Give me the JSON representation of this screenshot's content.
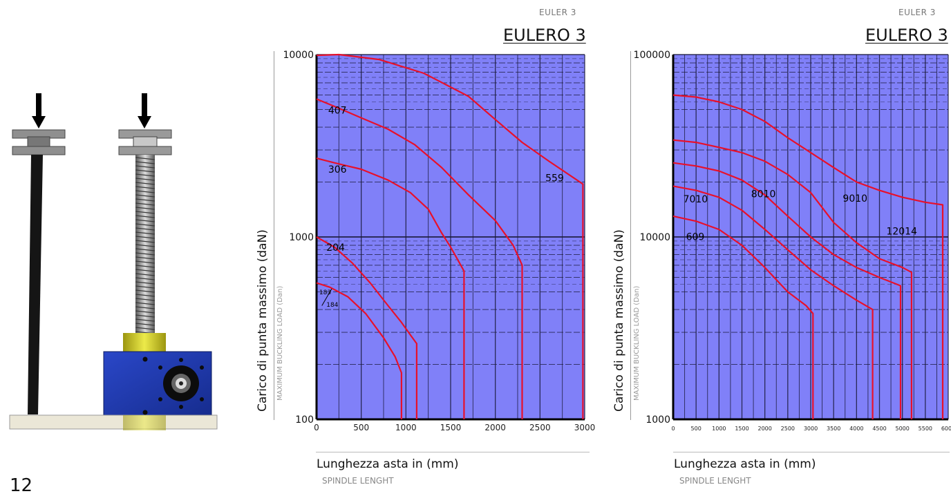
{
  "page_number": "12",
  "chart_data": [
    {
      "type": "line",
      "header_small": "EULER 3",
      "title": "EULERO 3",
      "ylabel": "Carico di punta massimo (daN)",
      "ylabel_sub": "MAXIMUM BUCKLING LOAD (Dan)",
      "xlabel": "Lunghezza asta in (mm)",
      "xlabel_sub": "SPINDLE LENGHT",
      "y_scale": "log",
      "ylim": [
        100,
        10000
      ],
      "xlim": [
        0,
        3000
      ],
      "x_ticks": [
        "0",
        "500",
        "1000",
        "1500",
        "2000",
        "2500",
        "3000"
      ],
      "y_ticks": [
        "100",
        "1000",
        "10000"
      ],
      "grid": true,
      "background_color": "#8080f8",
      "line_color": "#e8102a",
      "series": [
        {
          "name": "559",
          "x": [
            0,
            250,
            700,
            1200,
            1700,
            2000,
            2300,
            2600,
            2980,
            2980
          ],
          "y": [
            9900,
            10000,
            9400,
            7900,
            5900,
            4400,
            3300,
            2600,
            1950,
            100
          ]
        },
        {
          "name": "407",
          "x": [
            0,
            200,
            500,
            800,
            1100,
            1400,
            1700,
            2000,
            2200,
            2300,
            2300
          ],
          "y": [
            5700,
            5200,
            4500,
            3900,
            3200,
            2400,
            1700,
            1230,
            900,
            700,
            100
          ]
        },
        {
          "name": "306",
          "x": [
            0,
            200,
            500,
            800,
            1050,
            1250,
            1400,
            1500,
            1600,
            1650,
            1650
          ],
          "y": [
            2700,
            2550,
            2350,
            2050,
            1750,
            1420,
            1050,
            880,
            720,
            650,
            100
          ]
        },
        {
          "name": "204",
          "x": [
            0,
            200,
            400,
            600,
            800,
            950,
            1050,
            1120,
            1120
          ],
          "y": [
            1000,
            880,
            720,
            560,
            420,
            340,
            290,
            260,
            100
          ]
        },
        {
          "name": "183/184",
          "x": [
            0,
            150,
            350,
            550,
            750,
            880,
            950,
            950
          ],
          "y": [
            560,
            530,
            470,
            380,
            280,
            220,
            180,
            100
          ]
        }
      ],
      "line_labels": [
        {
          "text": "559",
          "x": 2560,
          "y": 2020
        },
        {
          "text": "407",
          "x": 130,
          "y": 4750
        },
        {
          "text": "306",
          "x": 130,
          "y": 2250
        },
        {
          "text": "204",
          "x": 110,
          "y": 840
        },
        {
          "text": "183",
          "x": 30,
          "y": 485
        },
        {
          "text": "184",
          "x": 110,
          "y": 415
        }
      ]
    },
    {
      "type": "line",
      "header_small": "EULER 3",
      "title": "EULERO 3",
      "ylabel": "Carico di punta massimo (daN)",
      "ylabel_sub": "MAXIMUM BUCKLING LOAD (Dan)",
      "xlabel": "Lunghezza asta in (mm)",
      "xlabel_sub": "SPINDLE LENGHT",
      "y_scale": "log",
      "ylim": [
        1000,
        100000
      ],
      "xlim": [
        0,
        6000
      ],
      "x_ticks": [
        "0",
        "500",
        "1000",
        "1500",
        "2000",
        "2500",
        "3000",
        "3500",
        "4000",
        "4500",
        "5000",
        "5500",
        "6000"
      ],
      "y_ticks": [
        "1000",
        "10000",
        "100000"
      ],
      "grid": true,
      "background_color": "#8080f8",
      "line_color": "#e8102a",
      "series": [
        {
          "name": "12014",
          "x": [
            0,
            500,
            1000,
            1500,
            2000,
            2500,
            3000,
            3500,
            4000,
            4500,
            5000,
            5500,
            5880,
            5880
          ],
          "y": [
            60000,
            58500,
            55000,
            50000,
            43000,
            35000,
            29000,
            24000,
            20000,
            18000,
            16500,
            15500,
            15000,
            1000
          ]
        },
        {
          "name": "9010",
          "x": [
            0,
            500,
            1000,
            1500,
            2000,
            2500,
            3000,
            3500,
            4000,
            4500,
            5000,
            5200,
            5200
          ],
          "y": [
            34000,
            33000,
            31000,
            29000,
            26000,
            22000,
            17500,
            12000,
            9300,
            7600,
            6800,
            6400,
            1000
          ]
        },
        {
          "name": "8010",
          "x": [
            0,
            500,
            1000,
            1500,
            2000,
            2500,
            3000,
            3500,
            4000,
            4500,
            4960,
            4960
          ],
          "y": [
            25500,
            24500,
            23000,
            20500,
            17000,
            13000,
            10000,
            8000,
            6800,
            6000,
            5400,
            1000
          ]
        },
        {
          "name": "7010",
          "x": [
            0,
            500,
            1000,
            1500,
            2000,
            2500,
            3000,
            3500,
            4000,
            4350,
            4350
          ],
          "y": [
            19000,
            18000,
            16500,
            14000,
            11000,
            8500,
            6600,
            5400,
            4500,
            4000,
            1000
          ]
        },
        {
          "name": "609",
          "x": [
            0,
            500,
            1000,
            1500,
            2000,
            2500,
            2900,
            3050,
            3050
          ],
          "y": [
            13000,
            12200,
            11000,
            9000,
            6800,
            5000,
            4200,
            3800,
            1000
          ]
        }
      ],
      "line_labels": [
        {
          "text": "7010",
          "x": 220,
          "y": 15500
        },
        {
          "text": "8010",
          "x": 1700,
          "y": 16500
        },
        {
          "text": "9010",
          "x": 3700,
          "y": 15600
        },
        {
          "text": "12014",
          "x": 4650,
          "y": 10300
        },
        {
          "text": "609",
          "x": 280,
          "y": 9600
        }
      ]
    }
  ]
}
